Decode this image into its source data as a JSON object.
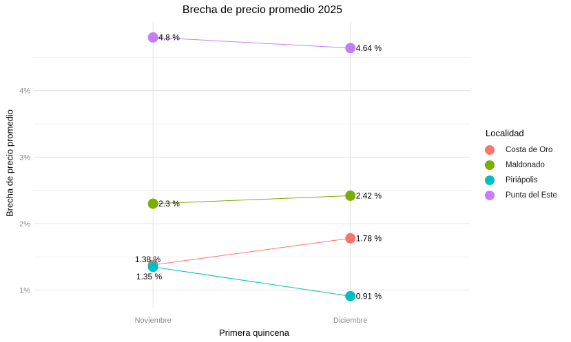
{
  "chart_data": {
    "type": "line",
    "title": "Brecha de precio promedio 2025",
    "xlabel": "Primera quincena",
    "ylabel": "Brecha de precio promedio",
    "categories": [
      "Noviembre",
      "Diciembre"
    ],
    "ylim": [
      0.738,
      5.031
    ],
    "yticks": [
      {
        "value": 1,
        "label": "1%"
      },
      {
        "value": 2,
        "label": "2%"
      },
      {
        "value": 3,
        "label": "3%"
      },
      {
        "value": 4,
        "label": "4%"
      }
    ],
    "y_minor_ticks": [
      1.5,
      2.5,
      3.5,
      4.5
    ],
    "grid": true,
    "legend": {
      "title": "Localidad",
      "position": "right"
    },
    "series": [
      {
        "name": "Costa de Oro",
        "color": "#F8766D",
        "values": [
          1.38,
          1.78
        ],
        "point_labels": [
          "1.38 %",
          "1.78 %"
        ]
      },
      {
        "name": "Maldonado",
        "color": "#7CAE00",
        "values": [
          2.3,
          2.42
        ],
        "point_labels": [
          "2.3 %",
          "2.42 %"
        ]
      },
      {
        "name": "Piriápolis",
        "color": "#00BFC4",
        "values": [
          1.35,
          0.91
        ],
        "point_labels": [
          "1.35 %",
          "0.91 %"
        ]
      },
      {
        "name": "Punta del Este",
        "color": "#C77CFF",
        "values": [
          4.8,
          4.64
        ],
        "point_labels": [
          "4.8 %",
          "4.64 %"
        ]
      }
    ]
  }
}
